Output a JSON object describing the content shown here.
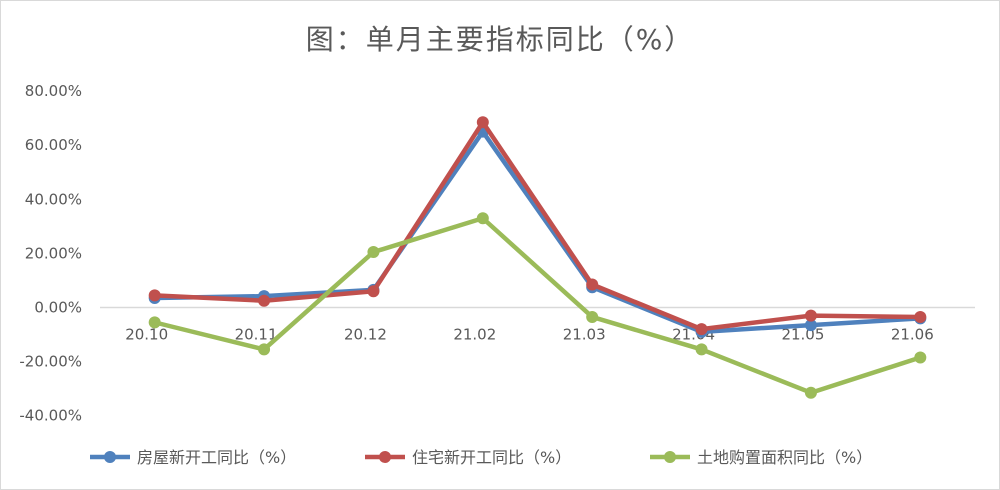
{
  "chart_data": {
    "type": "line",
    "title": "图：单月主要指标同比（%）",
    "categories": [
      "20.10",
      "20.11",
      "20.12",
      "21.02",
      "21.03",
      "21.04",
      "21.05",
      "21.06"
    ],
    "y_tick_labels": [
      "80.00%",
      "60.00%",
      "40.00%",
      "20.00%",
      "0.00%",
      "-20.00%",
      "-40.00%"
    ],
    "y_ticks": [
      80,
      60,
      40,
      20,
      0,
      -20,
      -40
    ],
    "ylim": [
      -40,
      80
    ],
    "grid": false,
    "legend_position": "bottom",
    "series": [
      {
        "name": "房屋新开工同比（%）",
        "color": "#4f81bd",
        "values": [
          3.5,
          4.2,
          6.5,
          65.0,
          7.5,
          -9.0,
          -6.5,
          -4.0
        ]
      },
      {
        "name": "住宅新开工同比（%）",
        "color": "#c0504d",
        "values": [
          4.5,
          2.5,
          6.0,
          68.5,
          8.5,
          -8.0,
          -3.0,
          -3.5
        ]
      },
      {
        "name": "土地购置面积同比（%）",
        "color": "#9bbb59",
        "values": [
          -5.5,
          -15.5,
          20.5,
          33.0,
          -3.5,
          -15.5,
          -31.5,
          -18.5
        ]
      }
    ]
  }
}
